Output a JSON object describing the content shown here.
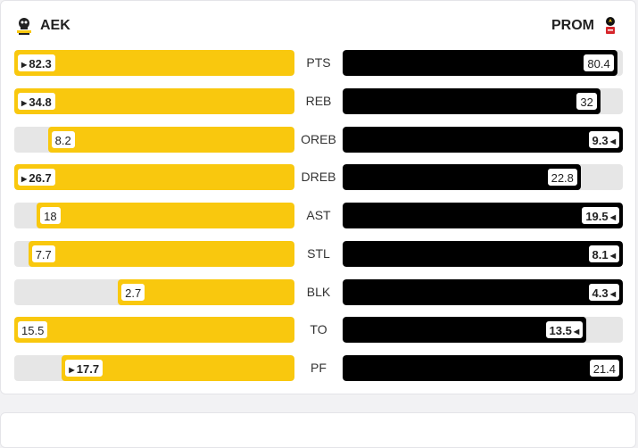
{
  "home": {
    "name": "AEK",
    "color": "#f9c80e",
    "logo_icon": "aek-logo-icon"
  },
  "away": {
    "name": "PROM",
    "color": "#000000",
    "logo_icon": "promitheas-logo-icon"
  },
  "stats": [
    {
      "label": "PTS",
      "home": "82.3",
      "away": "80.4",
      "home_frac": 1.0,
      "away_frac": 0.98,
      "leader": "home"
    },
    {
      "label": "REB",
      "home": "34.8",
      "away": "32",
      "home_frac": 1.0,
      "away_frac": 0.92,
      "leader": "home"
    },
    {
      "label": "OREB",
      "home": "8.2",
      "away": "9.3",
      "home_frac": 0.88,
      "away_frac": 1.0,
      "leader": "away"
    },
    {
      "label": "DREB",
      "home": "26.7",
      "away": "22.8",
      "home_frac": 1.0,
      "away_frac": 0.85,
      "leader": "home"
    },
    {
      "label": "AST",
      "home": "18",
      "away": "19.5",
      "home_frac": 0.92,
      "away_frac": 1.0,
      "leader": "away"
    },
    {
      "label": "STL",
      "home": "7.7",
      "away": "8.1",
      "home_frac": 0.95,
      "away_frac": 1.0,
      "leader": "away"
    },
    {
      "label": "BLK",
      "home": "2.7",
      "away": "4.3",
      "home_frac": 0.63,
      "away_frac": 1.0,
      "leader": "away"
    },
    {
      "label": "TO",
      "home": "15.5",
      "away": "13.5",
      "home_frac": 1.0,
      "away_frac": 0.87,
      "leader": "away"
    },
    {
      "label": "PF",
      "home": "17.7",
      "away": "21.4",
      "home_frac": 0.83,
      "away_frac": 1.0,
      "leader": "home"
    }
  ]
}
